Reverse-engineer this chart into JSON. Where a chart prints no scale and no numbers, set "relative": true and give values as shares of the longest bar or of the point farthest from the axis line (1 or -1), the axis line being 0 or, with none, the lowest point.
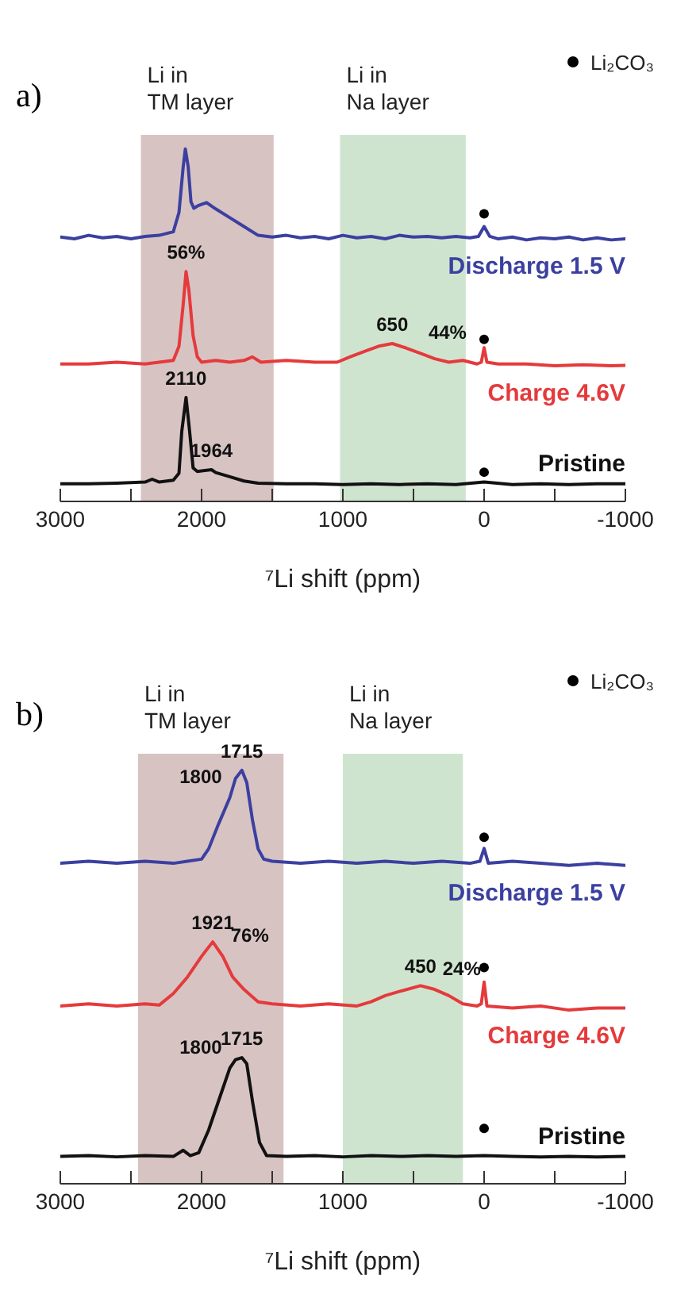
{
  "chart_data": [
    {
      "type": "line",
      "title": "a)",
      "xlabel": "⁷Li shift (ppm)",
      "relative": true,
      "xlim": [
        3000,
        -1000
      ],
      "xticks": [
        3000,
        {
          "value": 2500,
          "label": null
        },
        2000,
        {
          "value": 1500,
          "label": null
        },
        1000,
        {
          "value": 500,
          "label": null
        },
        0,
        {
          "value": -500,
          "label": null
        },
        -1000
      ],
      "legend": "top right",
      "marker": "none",
      "line_style": "solid",
      "bands": [
        {
          "axis": "x",
          "from": 2430,
          "to": 1490,
          "label": "Li in\nTM layer",
          "color": "#d8c3c3"
        },
        {
          "axis": "x",
          "from": 1020,
          "to": 130,
          "label": "Li in\nNa layer",
          "color": "#cfe4cf"
        }
      ],
      "annotations": [
        {
          "text": "56%",
          "x": 2110,
          "y": 0.652
        },
        {
          "text": "650",
          "x": 650,
          "y": 0.448
        },
        {
          "text": "44%",
          "x": 450,
          "y": 0.42
        },
        {
          "text": "2110",
          "x": 2110,
          "y": 0.295
        },
        {
          "text": "1964",
          "x": 1930,
          "y": 0.09
        }
      ],
      "series": [
        {
          "name": "Discharge 1.5 V",
          "color": "#3b40a0",
          "x": [
            3000,
            2900,
            2800,
            2700,
            2600,
            2500,
            2400,
            2300,
            2200,
            2160,
            2130,
            2115,
            2095,
            2075,
            2055,
            2020,
            1965,
            1900,
            1800,
            1700,
            1600,
            1500,
            1400,
            1300,
            1200,
            1100,
            1000,
            900,
            800,
            700,
            600,
            500,
            400,
            300,
            200,
            100,
            40,
            0,
            -40,
            -100,
            -200,
            -300,
            -400,
            -500,
            -600,
            -700,
            -800,
            -900,
            -1000
          ],
          "values": [
            0.75,
            0.745,
            0.755,
            0.748,
            0.752,
            0.745,
            0.752,
            0.755,
            0.765,
            0.82,
            0.95,
            1.0,
            0.95,
            0.85,
            0.832,
            0.84,
            0.848,
            0.83,
            0.805,
            0.78,
            0.755,
            0.75,
            0.755,
            0.748,
            0.752,
            0.745,
            0.755,
            0.748,
            0.752,
            0.745,
            0.755,
            0.75,
            0.752,
            0.748,
            0.752,
            0.748,
            0.752,
            0.78,
            0.752,
            0.745,
            0.75,
            0.742,
            0.748,
            0.745,
            0.75,
            0.742,
            0.748,
            0.742,
            0.745
          ]
        },
        {
          "name": "Charge 4.6V",
          "color": "#e53a3c",
          "x": [
            3000,
            2800,
            2600,
            2400,
            2300,
            2200,
            2160,
            2130,
            2110,
            2090,
            2060,
            2030,
            2000,
            1900,
            1800,
            1700,
            1640,
            1580,
            1400,
            1200,
            1040,
            950,
            850,
            750,
            650,
            550,
            450,
            350,
            250,
            150,
            50,
            20,
            0,
            -20,
            -100,
            -300,
            -500,
            -700,
            -900,
            -1000
          ],
          "values": [
            0.39,
            0.39,
            0.395,
            0.39,
            0.395,
            0.4,
            0.44,
            0.56,
            0.652,
            0.6,
            0.47,
            0.41,
            0.395,
            0.4,
            0.395,
            0.4,
            0.41,
            0.395,
            0.4,
            0.395,
            0.395,
            0.41,
            0.425,
            0.44,
            0.448,
            0.435,
            0.42,
            0.405,
            0.395,
            0.4,
            0.39,
            0.395,
            0.436,
            0.395,
            0.39,
            0.39,
            0.385,
            0.388,
            0.385,
            0.386
          ]
        },
        {
          "name": "Pristine",
          "color": "#111111",
          "x": [
            3000,
            2800,
            2600,
            2400,
            2350,
            2300,
            2200,
            2160,
            2140,
            2110,
            2085,
            2060,
            2030,
            1930,
            1900,
            1800,
            1700,
            1600,
            1400,
            1200,
            1000,
            800,
            600,
            400,
            200,
            0,
            -200,
            -400,
            -600,
            -800,
            -1000
          ],
          "values": [
            0.05,
            0.05,
            0.052,
            0.055,
            0.063,
            0.055,
            0.06,
            0.08,
            0.2,
            0.295,
            0.2,
            0.095,
            0.085,
            0.09,
            0.082,
            0.07,
            0.058,
            0.052,
            0.05,
            0.05,
            0.048,
            0.05,
            0.048,
            0.05,
            0.048,
            0.055,
            0.048,
            0.05,
            0.048,
            0.05,
            0.05
          ]
        },
        {
          "name": "Li₂CO₃",
          "type": "scatter",
          "marker": "circle",
          "color": "#000000",
          "x": [
            0,
            0,
            0
          ],
          "values": [
            0.816,
            0.46,
            0.083
          ]
        }
      ]
    },
    {
      "type": "line",
      "title": "b)",
      "xlabel": "⁷Li shift (ppm)",
      "relative": true,
      "xlim": [
        3000,
        -1000
      ],
      "xticks": [
        3000,
        {
          "value": 2500,
          "label": null
        },
        2000,
        {
          "value": 1500,
          "label": null
        },
        1000,
        {
          "value": 500,
          "label": null
        },
        0,
        {
          "value": -500,
          "label": null
        },
        -1000
      ],
      "legend": "top right",
      "marker": "none",
      "line_style": "solid",
      "bands": [
        {
          "axis": "x",
          "from": 2450,
          "to": 1420,
          "label": "Li in\nTM layer",
          "color": "#d8c3c3"
        },
        {
          "axis": "x",
          "from": 1000,
          "to": 150,
          "label": "Li in\nNa layer",
          "color": "#cfe4cf"
        }
      ],
      "annotations": [
        {
          "text": "1715",
          "x": 1715,
          "y": 1.0
        },
        {
          "text": "1800",
          "x": 1800,
          "y": 0.934
        },
        {
          "text": "1921",
          "x": 1921,
          "y": 0.585
        },
        {
          "text": "76%",
          "x": 1850,
          "y": 0.55
        },
        {
          "text": "450",
          "x": 450,
          "y": 0.479
        },
        {
          "text": "24%",
          "x": 350,
          "y": 0.47
        },
        {
          "text": "1715",
          "x": 1715,
          "y": 0.305
        },
        {
          "text": "1800",
          "x": 1800,
          "y": 0.28
        }
      ],
      "series": [
        {
          "name": "Discharge 1.5 V",
          "color": "#3b40a0",
          "x": [
            3000,
            2800,
            2600,
            2400,
            2200,
            2100,
            2000,
            1950,
            1880,
            1800,
            1760,
            1715,
            1680,
            1640,
            1600,
            1560,
            1500,
            1300,
            1100,
            900,
            700,
            500,
            300,
            100,
            30,
            0,
            -30,
            -200,
            -400,
            -600,
            -800,
            -1000
          ],
          "values": [
            0.775,
            0.78,
            0.775,
            0.78,
            0.775,
            0.78,
            0.785,
            0.81,
            0.87,
            0.934,
            0.98,
            1.0,
            0.97,
            0.88,
            0.81,
            0.785,
            0.78,
            0.775,
            0.78,
            0.775,
            0.78,
            0.775,
            0.78,
            0.775,
            0.78,
            0.811,
            0.775,
            0.78,
            0.775,
            0.77,
            0.775,
            0.77
          ]
        },
        {
          "name": "Charge 4.6V",
          "color": "#e53a3c",
          "x": [
            3000,
            2800,
            2600,
            2400,
            2300,
            2200,
            2100,
            2000,
            1921,
            1850,
            1780,
            1700,
            1600,
            1500,
            1300,
            1100,
            900,
            800,
            700,
            600,
            450,
            350,
            250,
            150,
            50,
            20,
            0,
            -20,
            -200,
            -400,
            -600,
            -800,
            -1000
          ],
          "values": [
            0.43,
            0.435,
            0.43,
            0.435,
            0.432,
            0.46,
            0.5,
            0.55,
            0.585,
            0.55,
            0.5,
            0.47,
            0.44,
            0.435,
            0.43,
            0.435,
            0.43,
            0.44,
            0.455,
            0.465,
            0.479,
            0.47,
            0.455,
            0.435,
            0.43,
            0.435,
            0.488,
            0.43,
            0.425,
            0.43,
            0.42,
            0.425,
            0.425
          ]
        },
        {
          "name": "Pristine",
          "color": "#111111",
          "x": [
            3000,
            2800,
            2600,
            2400,
            2200,
            2130,
            2080,
            2020,
            1950,
            1880,
            1800,
            1760,
            1715,
            1680,
            1640,
            1590,
            1540,
            1400,
            1200,
            1000,
            800,
            600,
            400,
            200,
            0,
            -200,
            -400,
            -600,
            -800,
            -1000
          ],
          "values": [
            0.066,
            0.068,
            0.065,
            0.068,
            0.066,
            0.081,
            0.068,
            0.075,
            0.13,
            0.2,
            0.28,
            0.3,
            0.305,
            0.29,
            0.2,
            0.1,
            0.068,
            0.066,
            0.068,
            0.065,
            0.068,
            0.066,
            0.068,
            0.066,
            0.068,
            0.066,
            0.065,
            0.066,
            0.065,
            0.066
          ]
        },
        {
          "name": "Li₂CO₃",
          "type": "scatter",
          "marker": "circle",
          "color": "#000000",
          "x": [
            0,
            0,
            0
          ],
          "values": [
            0.838,
            0.523,
            0.134
          ]
        }
      ]
    }
  ]
}
